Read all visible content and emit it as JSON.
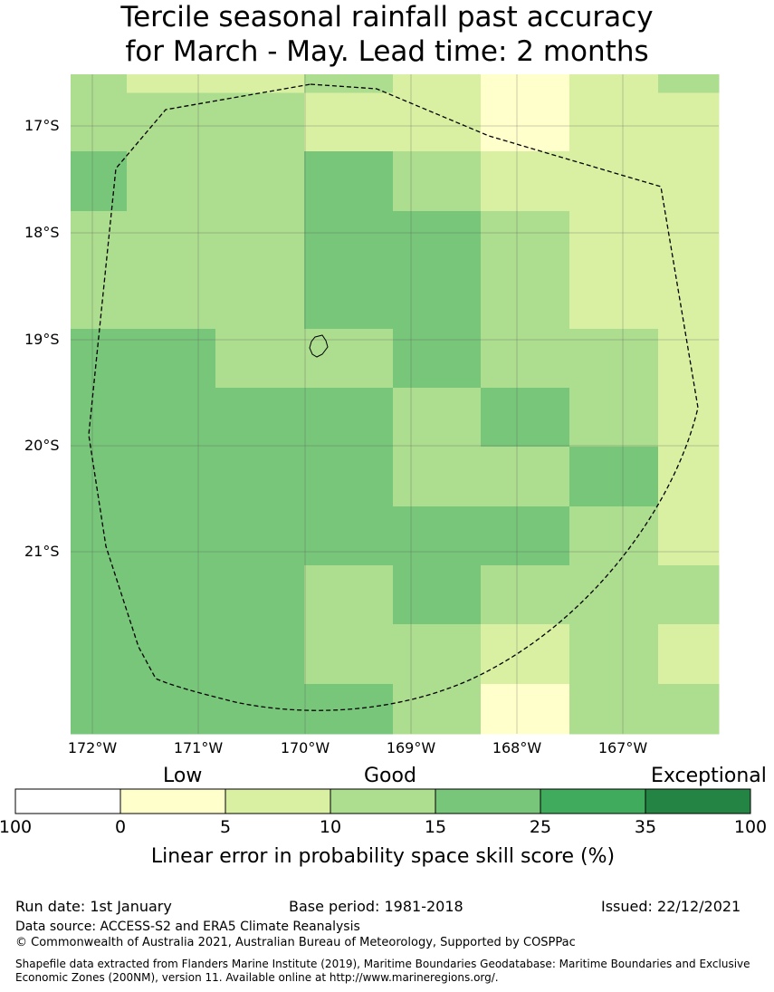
{
  "title": {
    "line1": "Tercile seasonal rainfall past accuracy",
    "line2": "for March - May. Lead time: 2 months"
  },
  "map": {
    "lat_labels": [
      "17°S",
      "18°S",
      "19°S",
      "20°S",
      "21°S"
    ],
    "lon_labels": [
      "172°W",
      "171°W",
      "170°W",
      "169°W",
      "168°W",
      "167°W"
    ],
    "skill_grid_category_index": [
      [
        2,
        1,
        1,
        2,
        2,
        0,
        1,
        2
      ],
      [
        2,
        2,
        2,
        1,
        1,
        0,
        1,
        1
      ],
      [
        3,
        2,
        2,
        3,
        2,
        1,
        1,
        1
      ],
      [
        2,
        2,
        2,
        3,
        3,
        2,
        1,
        1
      ],
      [
        2,
        2,
        2,
        3,
        3,
        2,
        1,
        1
      ],
      [
        3,
        3,
        2,
        2,
        3,
        2,
        2,
        1
      ],
      [
        3,
        3,
        3,
        3,
        2,
        3,
        2,
        1
      ],
      [
        3,
        3,
        3,
        3,
        2,
        2,
        3,
        1
      ],
      [
        3,
        3,
        3,
        3,
        3,
        3,
        2,
        1
      ],
      [
        3,
        3,
        3,
        2,
        3,
        2,
        2,
        2
      ],
      [
        3,
        3,
        3,
        2,
        2,
        1,
        2,
        1
      ],
      [
        3,
        3,
        3,
        3,
        2,
        0,
        2,
        2
      ]
    ],
    "colors": {
      "border": "#000000",
      "grid": "#555555"
    }
  },
  "legend": {
    "categories": [
      "Low",
      "Good",
      "Exceptional"
    ],
    "tick_labels": [
      "100",
      "0",
      "5",
      "10",
      "15",
      "25",
      "35",
      "100"
    ],
    "bin_colors": [
      "#ffffff",
      "#ffffcc",
      "#d9f0a3",
      "#addd8e",
      "#78c679",
      "#41ab5d",
      "#238443"
    ],
    "title": "Linear error in probability space skill score (%)"
  },
  "footer": {
    "run_date": "Run date: 1st January",
    "base_period": "Base period: 1981-2018",
    "issued": "Issued: 22/12/2021",
    "data_source": "Data source: ACCESS-S2 and ERA5 Climate Reanalysis",
    "copyright": "© Commonwealth of Australia 2021, Australian Bureau of Meteorology, Supported by COSPPac",
    "shapefile_line1": "Shapefile data extracted from Flanders Marine Institute (2019), Maritime Boundaries Geodatabase: Maritime Boundaries and Exclusive",
    "shapefile_line2": "Economic Zones (200NM), version 11. Available online at http://www.marineregions.org/."
  }
}
